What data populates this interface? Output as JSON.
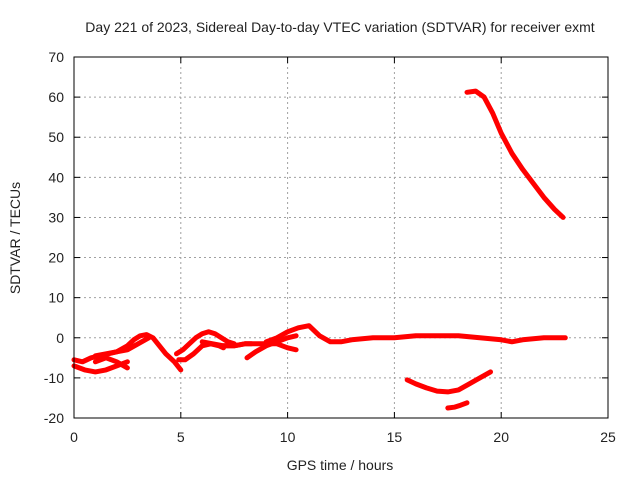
{
  "chart_data": {
    "type": "scatter",
    "title": "Day 221 of 2023, Sidereal Day-to-day VTEC variation (SDTVAR) for receiver exmt",
    "xlabel": "GPS time / hours",
    "ylabel": "SDTVAR / TECUs",
    "xlim": [
      0,
      25
    ],
    "ylim": [
      -20,
      70
    ],
    "x_ticks": [
      0,
      5,
      10,
      15,
      20,
      25
    ],
    "y_ticks": [
      -20,
      -10,
      0,
      10,
      20,
      30,
      40,
      50,
      60,
      70
    ],
    "grid": true,
    "legend": "none",
    "series_color": "#ff0000",
    "series": [
      {
        "name": "trace-1",
        "x": [
          0.0,
          0.4,
          0.8,
          1.2,
          1.6,
          2.0,
          2.5,
          2.8,
          3.1,
          3.4,
          3.7,
          4.0,
          4.3,
          4.7,
          5.0
        ],
        "y": [
          -5.5,
          -6,
          -5,
          -4.5,
          -4,
          -3.5,
          -2,
          -0.5,
          0.5,
          0.8,
          0,
          -2,
          -4,
          -6,
          -8
        ]
      },
      {
        "name": "trace-2",
        "x": [
          0.0,
          0.5,
          1.0,
          1.5,
          2.0,
          2.5
        ],
        "y": [
          -7,
          -8,
          -8.5,
          -8,
          -7,
          -6
        ]
      },
      {
        "name": "trace-3",
        "x": [
          1.0,
          1.5,
          2.0,
          2.5
        ],
        "y": [
          -6,
          -5,
          -6,
          -7.5
        ]
      },
      {
        "name": "trace-4",
        "x": [
          1.0,
          1.5,
          2.0,
          2.5,
          3.0,
          3.5
        ],
        "y": [
          -4.5,
          -4,
          -3.5,
          -3,
          -1.5,
          0
        ]
      },
      {
        "name": "trace-5",
        "x": [
          4.9,
          5.2,
          5.6,
          6.0,
          6.4,
          6.8,
          7.0
        ],
        "y": [
          -5.5,
          -5.5,
          -4,
          -2,
          -1.5,
          -2,
          -2.5
        ]
      },
      {
        "name": "trace-6",
        "x": [
          4.8,
          5.1,
          5.4,
          5.7,
          6.0,
          6.3,
          6.6,
          6.9,
          7.2,
          7.5
        ],
        "y": [
          -4,
          -3,
          -1.5,
          0,
          1,
          1.5,
          1,
          0,
          -1,
          -1.5
        ]
      },
      {
        "name": "trace-7",
        "x": [
          6.0,
          6.5,
          7.0,
          7.5,
          8.0,
          8.3
        ],
        "y": [
          -1,
          -1.5,
          -2,
          -2,
          -1.5,
          -1.5
        ]
      },
      {
        "name": "trace-8",
        "x": [
          7.0,
          7.5,
          8.0,
          8.5,
          9.0,
          9.5,
          10.0,
          10.4
        ],
        "y": [
          -2,
          -2,
          -1.5,
          -1.5,
          -1.5,
          -1.5,
          -2.5,
          -3
        ]
      },
      {
        "name": "trace-9",
        "x": [
          8.1,
          8.5,
          9.0,
          9.5,
          10.0,
          10.4
        ],
        "y": [
          -5,
          -3.5,
          -2,
          -1,
          0,
          0.5
        ]
      },
      {
        "name": "trace-10",
        "x": [
          9.0,
          9.5,
          10.0,
          10.5,
          11.0,
          11.5,
          12.0,
          12.5,
          13.0,
          14.0,
          15.0,
          16.0,
          17.0,
          18.0,
          19.0,
          20.0,
          20.5,
          21.0,
          22.0,
          23.0
        ],
        "y": [
          -1,
          0,
          1.5,
          2.5,
          3,
          0.5,
          -1,
          -1,
          -0.5,
          0,
          0,
          0.5,
          0.5,
          0.5,
          0,
          -0.5,
          -1,
          -0.5,
          0,
          0
        ]
      },
      {
        "name": "trace-11",
        "x": [
          15.6,
          16.0,
          16.5,
          17.0,
          17.5,
          18.0,
          18.5,
          19.0,
          19.5
        ],
        "y": [
          -10.5,
          -11.5,
          -12.5,
          -13.3,
          -13.5,
          -13,
          -11.5,
          -10,
          -8.5
        ]
      },
      {
        "name": "trace-12",
        "x": [
          17.5,
          17.8,
          18.1,
          18.4
        ],
        "y": [
          -17.5,
          -17.3,
          -16.8,
          -16.2
        ]
      },
      {
        "name": "trace-13",
        "x": [
          18.4,
          18.8,
          19.2,
          19.6,
          20.0,
          20.5,
          21.0,
          21.5,
          22.0,
          22.5,
          22.9
        ],
        "y": [
          61.2,
          61.5,
          60,
          56,
          51,
          46,
          42,
          38.5,
          35,
          32,
          30
        ]
      }
    ]
  }
}
